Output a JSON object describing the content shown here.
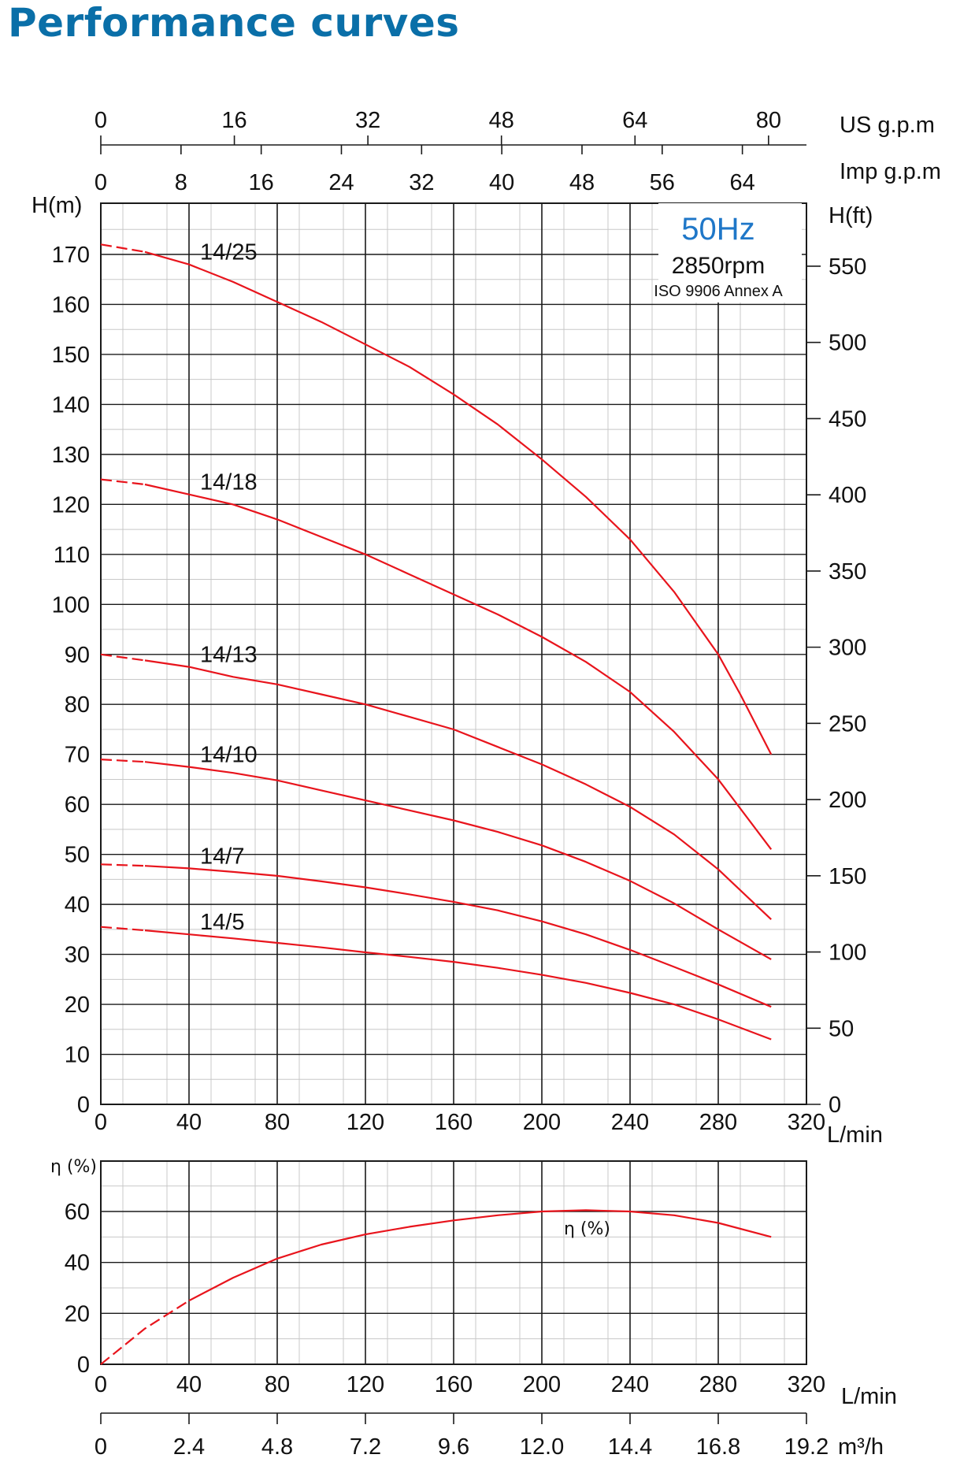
{
  "title": "Performance curves",
  "colors": {
    "title": "#0a6fa8",
    "curve": "#e8141c",
    "hz": "#1f77c8",
    "grid_major": "#1a1a1a",
    "grid_minor": "#c8c8c8"
  },
  "info_box": {
    "frequency": "50Hz",
    "speed": "2850rpm",
    "standard": "ISO 9906 Annex A"
  },
  "chart_data": [
    {
      "type": "line",
      "name": "head",
      "xlabel": "L/min",
      "ylabel": "H(m)",
      "ylabel_right": "H(ft)",
      "xlim": [
        0,
        320
      ],
      "ylim": [
        0,
        175
      ],
      "x_ticks": [
        "0",
        "40",
        "80",
        "120",
        "160",
        "200",
        "240",
        "280",
        "320"
      ],
      "y_ticks": [
        "0",
        "10",
        "20",
        "30",
        "40",
        "50",
        "60",
        "70",
        "80",
        "90",
        "100",
        "110",
        "120",
        "130",
        "140",
        "150",
        "160",
        "170"
      ],
      "right_axis": {
        "label": "H(ft)",
        "ticks": [
          {
            "ft": 0,
            "label": "0"
          },
          {
            "ft": 50,
            "label": "50"
          },
          {
            "ft": 100,
            "label": "100"
          },
          {
            "ft": 150,
            "label": "150"
          },
          {
            "ft": 200,
            "label": "200"
          },
          {
            "ft": 250,
            "label": "250"
          },
          {
            "ft": 300,
            "label": "300"
          },
          {
            "ft": 350,
            "label": "350"
          },
          {
            "ft": 400,
            "label": "400"
          },
          {
            "ft": 450,
            "label": "450"
          },
          {
            "ft": 500,
            "label": "500"
          },
          {
            "ft": 550,
            "label": "550"
          }
        ]
      },
      "top_axes": [
        {
          "unit": "US g.p.m",
          "ticks": [
            {
              "gpm": 0,
              "label": "0"
            },
            {
              "gpm": 16,
              "label": "16"
            },
            {
              "gpm": 32,
              "label": "32"
            },
            {
              "gpm": 48,
              "label": "48"
            },
            {
              "gpm": 64,
              "label": "64"
            },
            {
              "gpm": 80,
              "label": "80"
            }
          ]
        },
        {
          "unit": "Imp g.p.m",
          "ticks": [
            {
              "gpm": 0,
              "label": "0"
            },
            {
              "gpm": 8,
              "label": "8"
            },
            {
              "gpm": 16,
              "label": "16"
            },
            {
              "gpm": 24,
              "label": "24"
            },
            {
              "gpm": 32,
              "label": "32"
            },
            {
              "gpm": 40,
              "label": "40"
            },
            {
              "gpm": 48,
              "label": "48"
            },
            {
              "gpm": 56,
              "label": "56"
            },
            {
              "gpm": 64,
              "label": "64"
            }
          ]
        }
      ],
      "series": [
        {
          "name": "14/25",
          "dashed_until": 20,
          "x": [
            0,
            20,
            40,
            60,
            80,
            100,
            120,
            140,
            160,
            180,
            200,
            220,
            240,
            260,
            280,
            290,
            304
          ],
          "y": [
            172,
            170.5,
            168,
            164.5,
            160.5,
            156.5,
            152,
            147.5,
            142,
            136,
            129,
            121.5,
            113,
            102.5,
            90,
            82,
            70
          ]
        },
        {
          "name": "14/18",
          "dashed_until": 20,
          "x": [
            0,
            20,
            40,
            60,
            80,
            100,
            120,
            140,
            160,
            180,
            200,
            220,
            240,
            260,
            280,
            304
          ],
          "y": [
            125,
            124,
            122,
            120,
            117,
            113.5,
            110,
            106,
            102,
            98,
            93.5,
            88.5,
            82.5,
            74.5,
            65,
            51
          ]
        },
        {
          "name": "14/13",
          "dashed_until": 20,
          "x": [
            0,
            20,
            40,
            60,
            80,
            100,
            120,
            140,
            160,
            180,
            200,
            220,
            240,
            260,
            280,
            304
          ],
          "y": [
            90,
            88.8,
            87.5,
            85.5,
            84,
            82,
            80,
            77.5,
            75,
            71.5,
            68,
            64,
            59.5,
            54,
            47,
            37
          ]
        },
        {
          "name": "14/10",
          "dashed_until": 20,
          "x": [
            0,
            20,
            40,
            60,
            80,
            100,
            120,
            140,
            160,
            180,
            200,
            220,
            240,
            260,
            280,
            304
          ],
          "y": [
            69,
            68.5,
            67.5,
            66.3,
            64.8,
            62.8,
            60.8,
            58.8,
            56.8,
            54.5,
            51.8,
            48.5,
            44.7,
            40.2,
            35,
            29
          ]
        },
        {
          "name": "14/7",
          "dashed_until": 20,
          "x": [
            0,
            20,
            40,
            60,
            80,
            100,
            120,
            140,
            160,
            180,
            200,
            220,
            240,
            260,
            280,
            304
          ],
          "y": [
            48,
            47.7,
            47.2,
            46.5,
            45.7,
            44.6,
            43.4,
            42,
            40.5,
            38.8,
            36.6,
            34,
            30.9,
            27.5,
            24,
            19.5
          ]
        },
        {
          "name": "14/5",
          "dashed_until": 20,
          "x": [
            0,
            20,
            40,
            60,
            80,
            100,
            120,
            140,
            160,
            180,
            200,
            220,
            240,
            260,
            280,
            304
          ],
          "y": [
            35.5,
            34.8,
            34,
            33.2,
            32.3,
            31.4,
            30.4,
            29.5,
            28.5,
            27.3,
            25.9,
            24.3,
            22.3,
            20,
            17,
            13
          ]
        }
      ]
    },
    {
      "type": "line",
      "name": "efficiency",
      "xlabel": "L/min",
      "ylabel": "η (%)",
      "xlim": [
        0,
        320
      ],
      "ylim": [
        0,
        80
      ],
      "x_ticks": [
        "0",
        "40",
        "80",
        "120",
        "160",
        "200",
        "240",
        "280",
        "320"
      ],
      "y_ticks": [
        "0",
        "20",
        "40",
        "60"
      ],
      "series": [
        {
          "name": "η (%)",
          "dashed_until": 40,
          "x": [
            0,
            20,
            40,
            60,
            80,
            100,
            120,
            140,
            160,
            180,
            200,
            220,
            240,
            260,
            280,
            304
          ],
          "y": [
            0,
            14,
            25,
            34,
            41.5,
            47,
            51,
            54,
            56.5,
            58.5,
            60,
            60.5,
            60,
            58.5,
            55.5,
            50
          ]
        }
      ],
      "bottom_axis": {
        "unit": "m³/h",
        "ticks": [
          "0",
          "2.4",
          "4.8",
          "7.2",
          "9.6",
          "12.0",
          "14.4",
          "16.8",
          "19.2"
        ]
      }
    }
  ]
}
